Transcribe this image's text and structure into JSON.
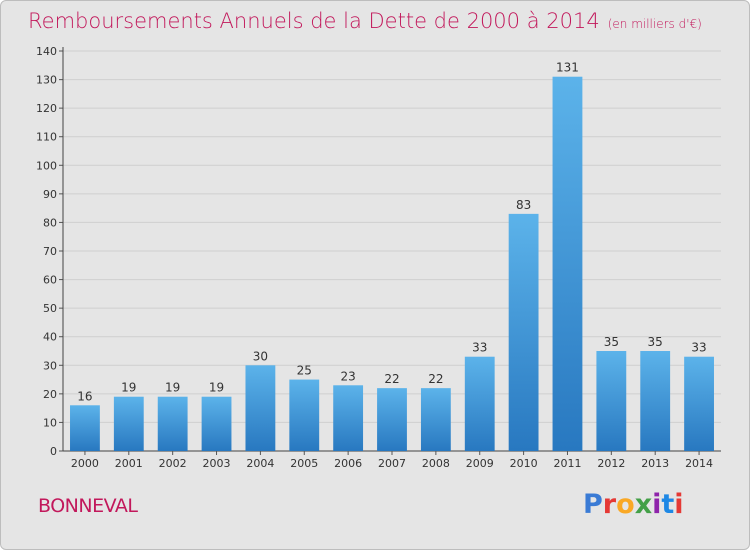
{
  "header": {
    "title": "Remboursements Annuels de la Dette de 2000 à 2014",
    "unit": "(en milliers d'€)"
  },
  "commune": "BONNEVAL",
  "logo": {
    "text": "Proxiti",
    "colors": [
      "#3a7bd5",
      "#e53935",
      "#f9a825",
      "#43a047",
      "#8e24aa",
      "#1e88e5",
      "#e53935"
    ]
  },
  "chart_data": {
    "type": "bar",
    "title": "Remboursements Annuels de la Dette de 2000 à 2014",
    "xlabel": "",
    "ylabel": "",
    "categories": [
      "2000",
      "2001",
      "2002",
      "2003",
      "2004",
      "2005",
      "2006",
      "2007",
      "2008",
      "2009",
      "2010",
      "2011",
      "2012",
      "2013",
      "2014"
    ],
    "values": [
      16,
      19,
      19,
      19,
      30,
      25,
      23,
      22,
      22,
      33,
      83,
      131,
      35,
      35,
      33
    ],
    "ylim": [
      0,
      140
    ],
    "yticks": [
      0,
      10,
      20,
      30,
      40,
      50,
      60,
      70,
      80,
      90,
      100,
      110,
      120,
      130,
      140
    ],
    "grid": true,
    "bar_color": "#3a8fd6"
  }
}
